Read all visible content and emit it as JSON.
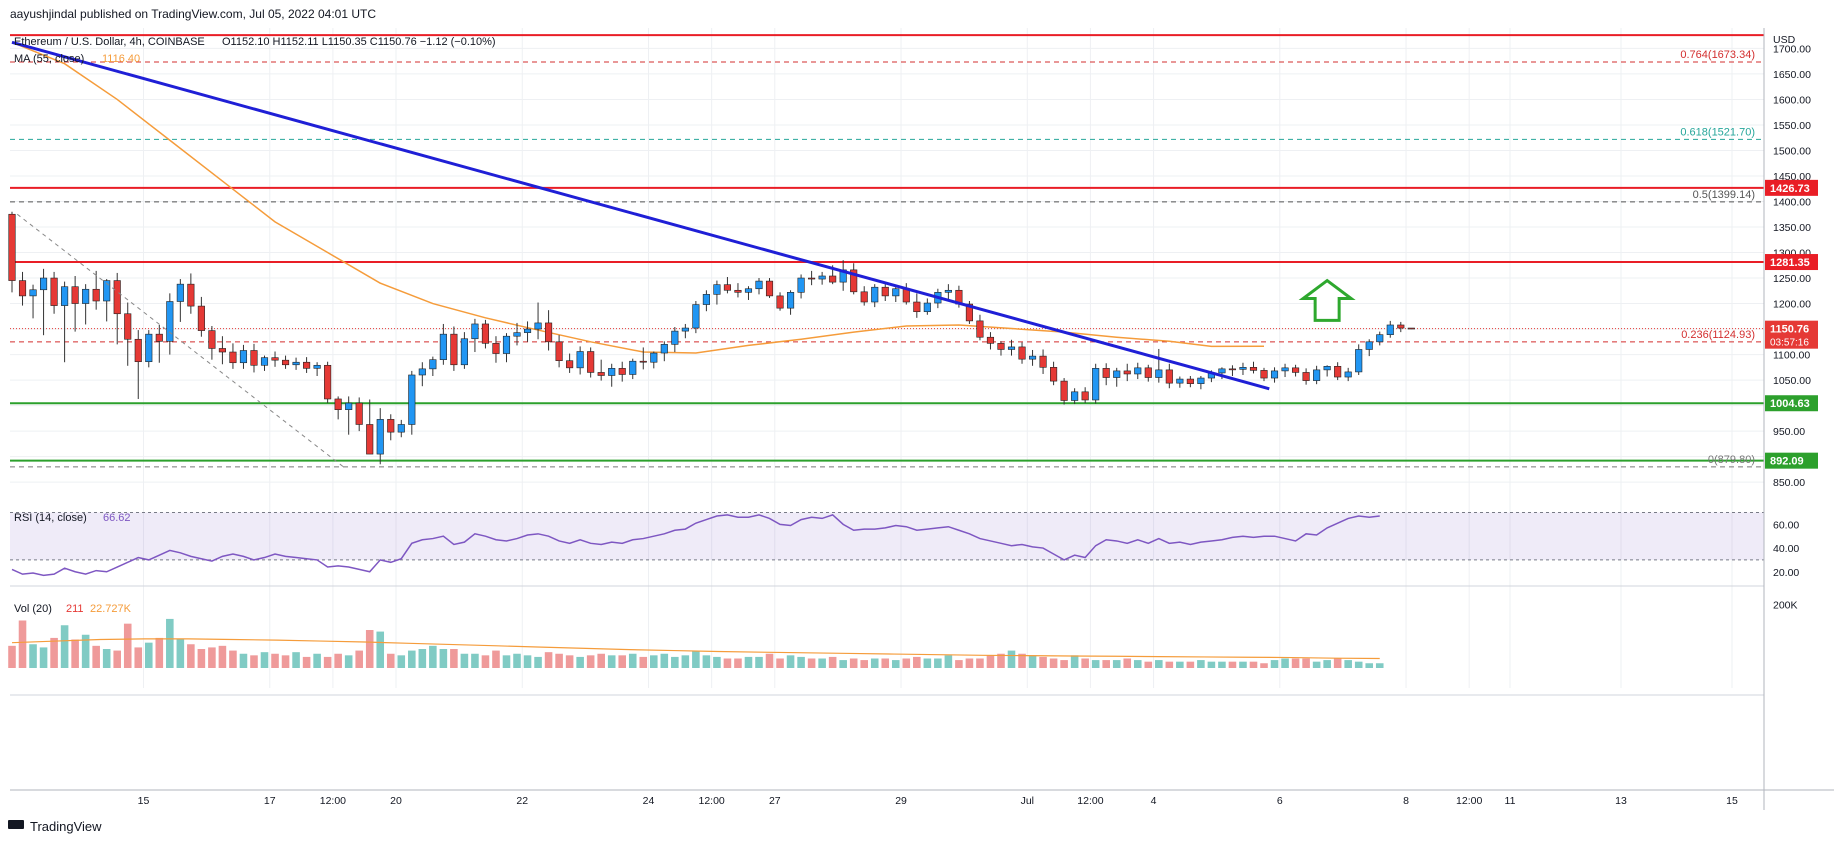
{
  "header": {
    "publisher": "aayushjindal published on TradingView.com, Jul 05, 2022 04:01 UTC",
    "symbol": "Ethereum / U.S. Dollar, 4h, COINBASE",
    "ohlc": "O1152.10 H1152.11 L1150.35 C1150.76 −1.12 (−0.10%)",
    "ma_label": "MA (55, close)",
    "ma_value": "1116.40"
  },
  "footer": {
    "brand": "TradingView"
  },
  "chart_data": {
    "type": "candlestick",
    "currency": "USD",
    "timeframe": "4h",
    "y_axis": {
      "ylim": [
        815,
        1740
      ],
      "ticks": [
        850,
        900,
        950,
        1000,
        1050,
        1100,
        1150,
        1200,
        1250,
        1300,
        1350,
        1400,
        1450,
        1500,
        1550,
        1600,
        1650,
        1700
      ],
      "labels": [
        "850.00",
        "900.00",
        "950.00",
        "1000.00",
        "1050.00",
        "1100.00",
        "1150.00",
        "1200.00",
        "1250.00",
        "1300.00",
        "1350.00",
        "1400.00",
        "1450.00",
        "1500.00",
        "1550.00",
        "1600.00",
        "1650.00",
        "1700.00"
      ]
    },
    "x_axis": {
      "xlim": [
        0,
        140
      ],
      "ticks": [
        {
          "x": 12.5,
          "label": "15"
        },
        {
          "x": 24.5,
          "label": "17"
        },
        {
          "x": 30.5,
          "label": "12:00"
        },
        {
          "x": 36.5,
          "label": "20"
        },
        {
          "x": 48.5,
          "label": "22"
        },
        {
          "x": 60.5,
          "label": "24"
        },
        {
          "x": 66.5,
          "label": "12:00"
        },
        {
          "x": 72.5,
          "label": "27"
        },
        {
          "x": 84.5,
          "label": "29"
        },
        {
          "x": 96.5,
          "label": "Jul"
        },
        {
          "x": 102.5,
          "label": "12:00"
        },
        {
          "x": 108.5,
          "label": "4"
        },
        {
          "x": 120.5,
          "label": "6"
        },
        {
          "x": 132.5,
          "label": "8"
        },
        {
          "x": 138.5,
          "label": "12:00"
        }
      ],
      "extra_labels": [
        "11",
        "13",
        "15"
      ]
    },
    "horizontal_levels": [
      {
        "price": 1726,
        "label": "",
        "color": "#e91e26",
        "style": "solid"
      },
      {
        "price": 1426.73,
        "label": "1426.73",
        "color": "#e91e26",
        "style": "solid"
      },
      {
        "price": 1281.35,
        "label": "1281.35",
        "color": "#e91e26",
        "style": "solid"
      },
      {
        "price": 1004.63,
        "label": "1004.63",
        "color": "#2ca02c",
        "style": "solid"
      },
      {
        "price": 892.09,
        "label": "892.09",
        "color": "#2ca02c",
        "style": "solid"
      }
    ],
    "fibonacci": [
      {
        "level": "0.764",
        "price": 1673.34,
        "label": "0.764(1673.34)",
        "color": "#d32f2f"
      },
      {
        "level": "0.618",
        "price": 1521.7,
        "label": "0.618(1521.70)",
        "color": "#26a69a"
      },
      {
        "level": "0.5",
        "price": 1399.14,
        "label": "0.5(1399.14)",
        "color": "#555555"
      },
      {
        "level": "0.236",
        "price": 1124.93,
        "label": "0.236(1124.93)",
        "color": "#d32f2f"
      },
      {
        "level": "0",
        "price": 879.8,
        "label": "0(879.80)",
        "color": "#777777"
      }
    ],
    "last_price": {
      "price": 1150.76,
      "label": "1150.76",
      "countdown": "03:57:16",
      "color": "#e53935"
    },
    "trendline": {
      "from": [
        0,
        1712
      ],
      "to": [
        119.5,
        1033
      ],
      "color": "#1f1fd6"
    },
    "fib_connector": {
      "from": [
        0.5,
        1375
      ],
      "to": [
        31.5,
        880
      ]
    },
    "arrow": {
      "x": 125,
      "price_top": 1245,
      "price_bottom": 1167,
      "color": "#2ea82e"
    },
    "candles_ohlc": [
      [
        1375,
        1380,
        1222,
        1245
      ],
      [
        1245,
        1262,
        1196,
        1215
      ],
      [
        1215,
        1237,
        1171,
        1227
      ],
      [
        1227,
        1268,
        1138,
        1250
      ],
      [
        1250,
        1262,
        1180,
        1196
      ],
      [
        1196,
        1243,
        1085,
        1233
      ],
      [
        1233,
        1254,
        1145,
        1200
      ],
      [
        1200,
        1238,
        1159,
        1228
      ],
      [
        1228,
        1264,
        1188,
        1205
      ],
      [
        1205,
        1248,
        1165,
        1245
      ],
      [
        1245,
        1260,
        1120,
        1180
      ],
      [
        1180,
        1202,
        1078,
        1130
      ],
      [
        1130,
        1148,
        1013,
        1086
      ],
      [
        1086,
        1148,
        1075,
        1140
      ],
      [
        1140,
        1158,
        1084,
        1126
      ],
      [
        1126,
        1220,
        1100,
        1204
      ],
      [
        1204,
        1248,
        1164,
        1238
      ],
      [
        1238,
        1259,
        1180,
        1195
      ],
      [
        1195,
        1213,
        1135,
        1147
      ],
      [
        1147,
        1156,
        1090,
        1112
      ],
      [
        1112,
        1136,
        1081,
        1105
      ],
      [
        1105,
        1122,
        1072,
        1084
      ],
      [
        1084,
        1119,
        1072,
        1108
      ],
      [
        1108,
        1121,
        1065,
        1079
      ],
      [
        1079,
        1098,
        1068,
        1094
      ],
      [
        1094,
        1106,
        1076,
        1089
      ],
      [
        1089,
        1098,
        1072,
        1080
      ],
      [
        1080,
        1094,
        1070,
        1085
      ],
      [
        1085,
        1095,
        1064,
        1073
      ],
      [
        1073,
        1085,
        1058,
        1079
      ],
      [
        1079,
        1086,
        1005,
        1013
      ],
      [
        1013,
        1018,
        973,
        992
      ],
      [
        992,
        1018,
        943,
        1005
      ],
      [
        1005,
        1016,
        950,
        963
      ],
      [
        963,
        1012,
        905,
        905
      ],
      [
        905,
        995,
        885,
        973
      ],
      [
        973,
        983,
        932,
        948
      ],
      [
        948,
        972,
        938,
        963
      ],
      [
        963,
        1068,
        943,
        1060
      ],
      [
        1060,
        1085,
        1038,
        1072
      ],
      [
        1072,
        1096,
        1058,
        1090
      ],
      [
        1090,
        1160,
        1080,
        1140
      ],
      [
        1140,
        1155,
        1068,
        1080
      ],
      [
        1080,
        1144,
        1072,
        1131
      ],
      [
        1131,
        1170,
        1105,
        1160
      ],
      [
        1160,
        1168,
        1112,
        1122
      ],
      [
        1122,
        1136,
        1084,
        1102
      ],
      [
        1102,
        1142,
        1085,
        1136
      ],
      [
        1136,
        1162,
        1118,
        1143
      ],
      [
        1143,
        1165,
        1125,
        1150
      ],
      [
        1150,
        1202,
        1130,
        1162
      ],
      [
        1162,
        1187,
        1108,
        1125
      ],
      [
        1125,
        1138,
        1075,
        1088
      ],
      [
        1088,
        1102,
        1064,
        1074
      ],
      [
        1074,
        1116,
        1061,
        1106
      ],
      [
        1106,
        1114,
        1055,
        1065
      ],
      [
        1065,
        1090,
        1049,
        1059
      ],
      [
        1059,
        1082,
        1037,
        1073
      ],
      [
        1073,
        1086,
        1047,
        1061
      ],
      [
        1061,
        1092,
        1052,
        1087
      ],
      [
        1087,
        1114,
        1071,
        1085
      ],
      [
        1085,
        1106,
        1073,
        1103
      ],
      [
        1103,
        1126,
        1087,
        1120
      ],
      [
        1120,
        1154,
        1105,
        1146
      ],
      [
        1146,
        1160,
        1132,
        1152
      ],
      [
        1152,
        1205,
        1142,
        1198
      ],
      [
        1198,
        1226,
        1185,
        1218
      ],
      [
        1218,
        1245,
        1198,
        1237
      ],
      [
        1237,
        1252,
        1220,
        1226
      ],
      [
        1226,
        1240,
        1212,
        1222
      ],
      [
        1222,
        1234,
        1207,
        1229
      ],
      [
        1229,
        1250,
        1218,
        1244
      ],
      [
        1244,
        1250,
        1211,
        1215
      ],
      [
        1215,
        1222,
        1186,
        1191
      ],
      [
        1191,
        1226,
        1178,
        1222
      ],
      [
        1222,
        1257,
        1210,
        1250
      ],
      [
        1250,
        1264,
        1236,
        1248
      ],
      [
        1248,
        1262,
        1237,
        1254
      ],
      [
        1254,
        1275,
        1238,
        1242
      ],
      [
        1242,
        1285,
        1225,
        1266
      ],
      [
        1266,
        1279,
        1218,
        1223
      ],
      [
        1223,
        1234,
        1196,
        1203
      ],
      [
        1203,
        1238,
        1193,
        1232
      ],
      [
        1232,
        1238,
        1205,
        1215
      ],
      [
        1215,
        1236,
        1203,
        1229
      ],
      [
        1229,
        1240,
        1198,
        1203
      ],
      [
        1203,
        1220,
        1172,
        1184
      ],
      [
        1184,
        1210,
        1178,
        1201
      ],
      [
        1201,
        1229,
        1191,
        1222
      ],
      [
        1222,
        1238,
        1205,
        1226
      ],
      [
        1226,
        1235,
        1192,
        1199
      ],
      [
        1199,
        1205,
        1160,
        1166
      ],
      [
        1166,
        1178,
        1128,
        1134
      ],
      [
        1134,
        1144,
        1110,
        1122
      ],
      [
        1122,
        1126,
        1098,
        1110
      ],
      [
        1110,
        1129,
        1098,
        1115
      ],
      [
        1115,
        1124,
        1082,
        1091
      ],
      [
        1091,
        1109,
        1078,
        1097
      ],
      [
        1097,
        1110,
        1062,
        1075
      ],
      [
        1075,
        1086,
        1040,
        1048
      ],
      [
        1048,
        1054,
        1002,
        1010
      ],
      [
        1010,
        1034,
        1003,
        1027
      ],
      [
        1027,
        1036,
        1005,
        1011
      ],
      [
        1011,
        1082,
        1004,
        1073
      ],
      [
        1073,
        1083,
        1040,
        1055
      ],
      [
        1055,
        1074,
        1037,
        1068
      ],
      [
        1068,
        1082,
        1048,
        1062
      ],
      [
        1062,
        1084,
        1052,
        1074
      ],
      [
        1074,
        1080,
        1047,
        1055
      ],
      [
        1055,
        1111,
        1045,
        1070
      ],
      [
        1070,
        1082,
        1034,
        1044
      ],
      [
        1044,
        1057,
        1035,
        1052
      ],
      [
        1052,
        1058,
        1036,
        1043
      ],
      [
        1043,
        1058,
        1032,
        1054
      ],
      [
        1054,
        1069,
        1046,
        1064
      ],
      [
        1064,
        1075,
        1052,
        1072
      ],
      [
        1072,
        1079,
        1058,
        1071
      ],
      [
        1071,
        1084,
        1060,
        1075
      ],
      [
        1075,
        1086,
        1063,
        1069
      ],
      [
        1069,
        1074,
        1048,
        1054
      ],
      [
        1054,
        1075,
        1045,
        1068
      ],
      [
        1068,
        1082,
        1056,
        1074
      ],
      [
        1074,
        1080,
        1057,
        1065
      ],
      [
        1065,
        1073,
        1041,
        1049
      ],
      [
        1049,
        1078,
        1042,
        1070
      ],
      [
        1070,
        1079,
        1057,
        1077
      ],
      [
        1077,
        1085,
        1050,
        1056
      ],
      [
        1056,
        1074,
        1048,
        1066
      ],
      [
        1066,
        1120,
        1060,
        1110
      ],
      [
        1110,
        1130,
        1097,
        1125
      ],
      [
        1125,
        1145,
        1118,
        1139
      ],
      [
        1139,
        1166,
        1133,
        1158
      ],
      [
        1158,
        1164,
        1144,
        1152
      ],
      [
        1152,
        1152.11,
        1150.35,
        1150.76
      ]
    ],
    "ma": {
      "name": "MA (55, close)",
      "color": "#f59c3b",
      "points": [
        [
          0,
          1712
        ],
        [
          5,
          1670
        ],
        [
          10,
          1600
        ],
        [
          15,
          1520
        ],
        [
          20,
          1440
        ],
        [
          25,
          1360
        ],
        [
          30,
          1300
        ],
        [
          35,
          1240
        ],
        [
          40,
          1200
        ],
        [
          45,
          1172
        ],
        [
          50,
          1148
        ],
        [
          55,
          1125
        ],
        [
          60,
          1105
        ],
        [
          65,
          1103
        ],
        [
          70,
          1118
        ],
        [
          75,
          1130
        ],
        [
          80,
          1144
        ],
        [
          85,
          1156
        ],
        [
          90,
          1158
        ],
        [
          95,
          1151
        ],
        [
          100,
          1144
        ],
        [
          105,
          1134
        ],
        [
          110,
          1126
        ],
        [
          114,
          1116
        ],
        [
          119,
          1116.4
        ]
      ]
    },
    "rsi": {
      "name": "RSI (14, close)",
      "value_label": "66.62",
      "color": "#7e57c2",
      "ylim": [
        8,
        78
      ],
      "band": [
        30,
        70
      ],
      "tick_labels": [
        {
          "v": 20,
          "label": "20.00"
        },
        {
          "v": 40,
          "label": "40.00"
        },
        {
          "v": 60,
          "label": "60.00"
        }
      ],
      "values": [
        22,
        18,
        19,
        17,
        18,
        23,
        20,
        18,
        21,
        20,
        24,
        28,
        32,
        30,
        34,
        38,
        36,
        33,
        31,
        29,
        33,
        35,
        33,
        30,
        32,
        35,
        33,
        32,
        31,
        30,
        24,
        25,
        24,
        22,
        20,
        30,
        28,
        31,
        44,
        47,
        48,
        50,
        43,
        45,
        52,
        50,
        47,
        46,
        48,
        51,
        52,
        50,
        46,
        44,
        47,
        44,
        43,
        45,
        44,
        47,
        48,
        50,
        52,
        55,
        56,
        61,
        64,
        67,
        68,
        66,
        66,
        68,
        65,
        60,
        59,
        64,
        66,
        65,
        68,
        60,
        55,
        56,
        56,
        57,
        59,
        58,
        55,
        56,
        57,
        58,
        55,
        52,
        48,
        46,
        44,
        42,
        43,
        41,
        40,
        35,
        30,
        34,
        32,
        42,
        47,
        46,
        44,
        47,
        44,
        48,
        44,
        45,
        43,
        45,
        46,
        47,
        49,
        50,
        49,
        50,
        50,
        48,
        46,
        52,
        51,
        57,
        61,
        65,
        67,
        66,
        67
      ],
      "last": 66.62
    },
    "volume": {
      "name": "Vol (20)",
      "value1": "211",
      "value2": "22.727K",
      "ylim": [
        0,
        240
      ],
      "tick_labels": [
        {
          "v": 200,
          "label": "200K"
        }
      ],
      "values": [
        70,
        150,
        75,
        65,
        95,
        135,
        90,
        105,
        70,
        60,
        55,
        140,
        65,
        80,
        95,
        155,
        90,
        75,
        60,
        65,
        70,
        55,
        45,
        40,
        50,
        45,
        40,
        50,
        35,
        45,
        35,
        45,
        40,
        55,
        120,
        115,
        45,
        40,
        55,
        60,
        70,
        60,
        60,
        45,
        45,
        40,
        55,
        40,
        45,
        40,
        35,
        50,
        45,
        40,
        35,
        40,
        45,
        40,
        40,
        45,
        35,
        40,
        45,
        35,
        40,
        55,
        40,
        35,
        30,
        30,
        35,
        35,
        45,
        30,
        40,
        35,
        30,
        30,
        35,
        25,
        30,
        25,
        30,
        30,
        25,
        30,
        35,
        30,
        30,
        40,
        25,
        30,
        30,
        40,
        45,
        55,
        45,
        40,
        35,
        30,
        25,
        40,
        30,
        25,
        25,
        25,
        30,
        25,
        20,
        25,
        20,
        20,
        20,
        25,
        20,
        20,
        20,
        20,
        20,
        15,
        25,
        30,
        30,
        30,
        20,
        25,
        30,
        25,
        20,
        15,
        15
      ],
      "ma": [
        80,
        85,
        90,
        92,
        92,
        90,
        88,
        85,
        82,
        78,
        74,
        70,
        66,
        62,
        58,
        55,
        52,
        50,
        48,
        46,
        44,
        42,
        40,
        39,
        38,
        37,
        36,
        35,
        34,
        33,
        31,
        30
      ]
    }
  }
}
